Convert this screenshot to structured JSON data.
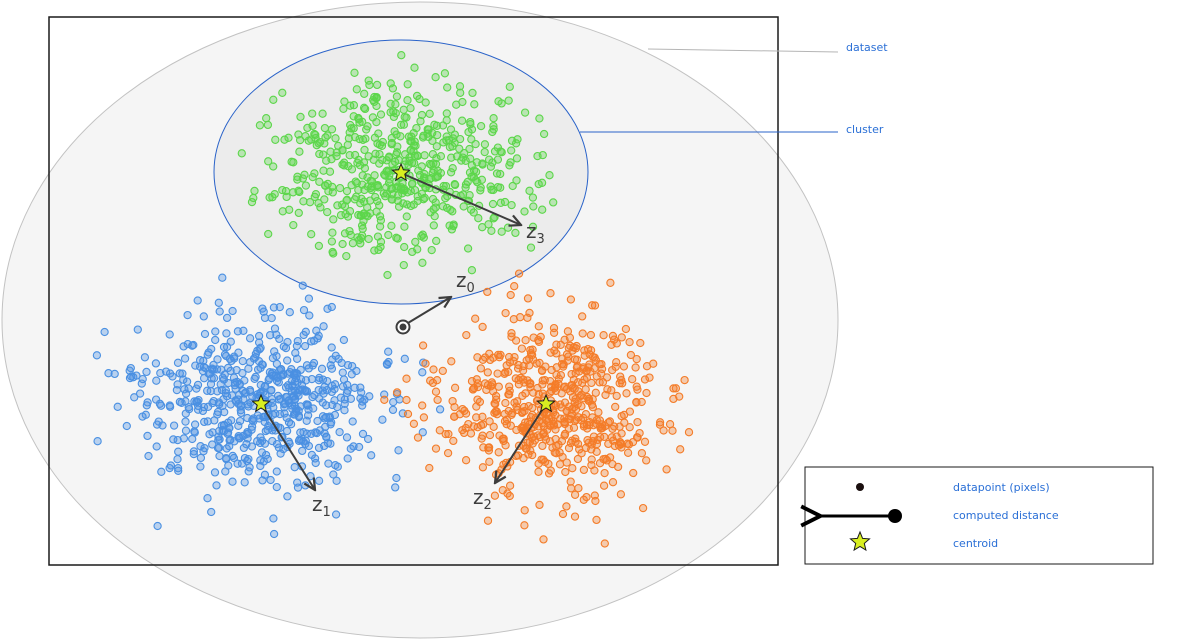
{
  "annotations": {
    "dataset": "dataset",
    "cluster": "cluster"
  },
  "clusters": [
    {
      "name": "blue",
      "color": "#4a90e2",
      "centroid_label": "1"
    },
    {
      "name": "orange",
      "color": "#f47c28",
      "centroid_label": "2"
    },
    {
      "name": "green",
      "color": "#5cd64a",
      "centroid_label": "3"
    }
  ],
  "vectors": {
    "z0": {
      "letter": "z",
      "sub": "0"
    },
    "z1": {
      "letter": "z",
      "sub": "1"
    },
    "z2": {
      "letter": "z",
      "sub": "2"
    },
    "z3": {
      "letter": "z",
      "sub": "3"
    }
  },
  "legend": {
    "items": [
      {
        "icon": "datapoint-dot-icon",
        "label": "datapoint (pixels)"
      },
      {
        "icon": "arrow-distance-icon",
        "label": "computed distance"
      },
      {
        "icon": "star-icon",
        "label": "centroid"
      }
    ]
  },
  "colors": {
    "dataset_fill": "#f5f5f5",
    "dataset_stroke": "#c2c2c2",
    "cluster_fill": "#ececec",
    "cluster_stroke": "#2a63c9",
    "arrow": "#3d3d3d",
    "star": "#d8ee20",
    "frame": "#1a1a1a"
  }
}
